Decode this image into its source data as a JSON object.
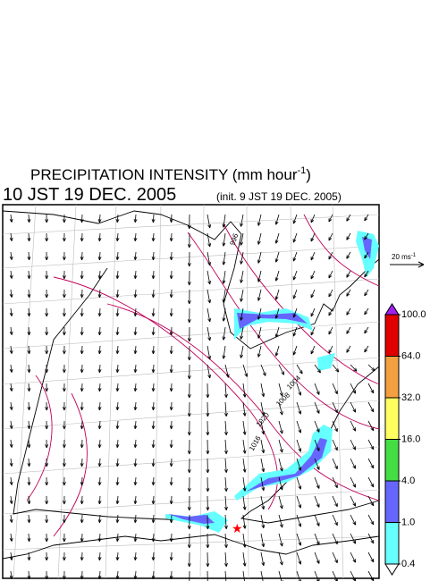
{
  "header": {
    "title": "PRECIPITATION INTENSITY (mm hour",
    "title_sup": "-1",
    "title_end": ")",
    "time": "10 JST 19 DEC. 2005",
    "init": "(init. 9 JST 19 DEC. 2005)"
  },
  "vector_legend": {
    "label": "20 ms",
    "sup": "-1"
  },
  "contour_labels": [
    "1016",
    "1020",
    "1008",
    "1004",
    "996"
  ],
  "colorbar": {
    "ticks": [
      {
        "value": 100,
        "label": "100.0"
      },
      {
        "value": 64,
        "label": "64.0"
      },
      {
        "value": 32,
        "label": "32.0"
      },
      {
        "value": 16,
        "label": "16.0"
      },
      {
        "value": 4,
        "label": "4.0"
      },
      {
        "value": 1,
        "label": "1.0"
      },
      {
        "value": 0.4,
        "label": "0.4"
      }
    ],
    "colors": [
      "#e00000",
      "#f4a040",
      "#ffff60",
      "#44dd44",
      "#6666ff",
      "#66ffff"
    ],
    "over_color": "#a020f0",
    "under_color": "#ffffff"
  }
}
